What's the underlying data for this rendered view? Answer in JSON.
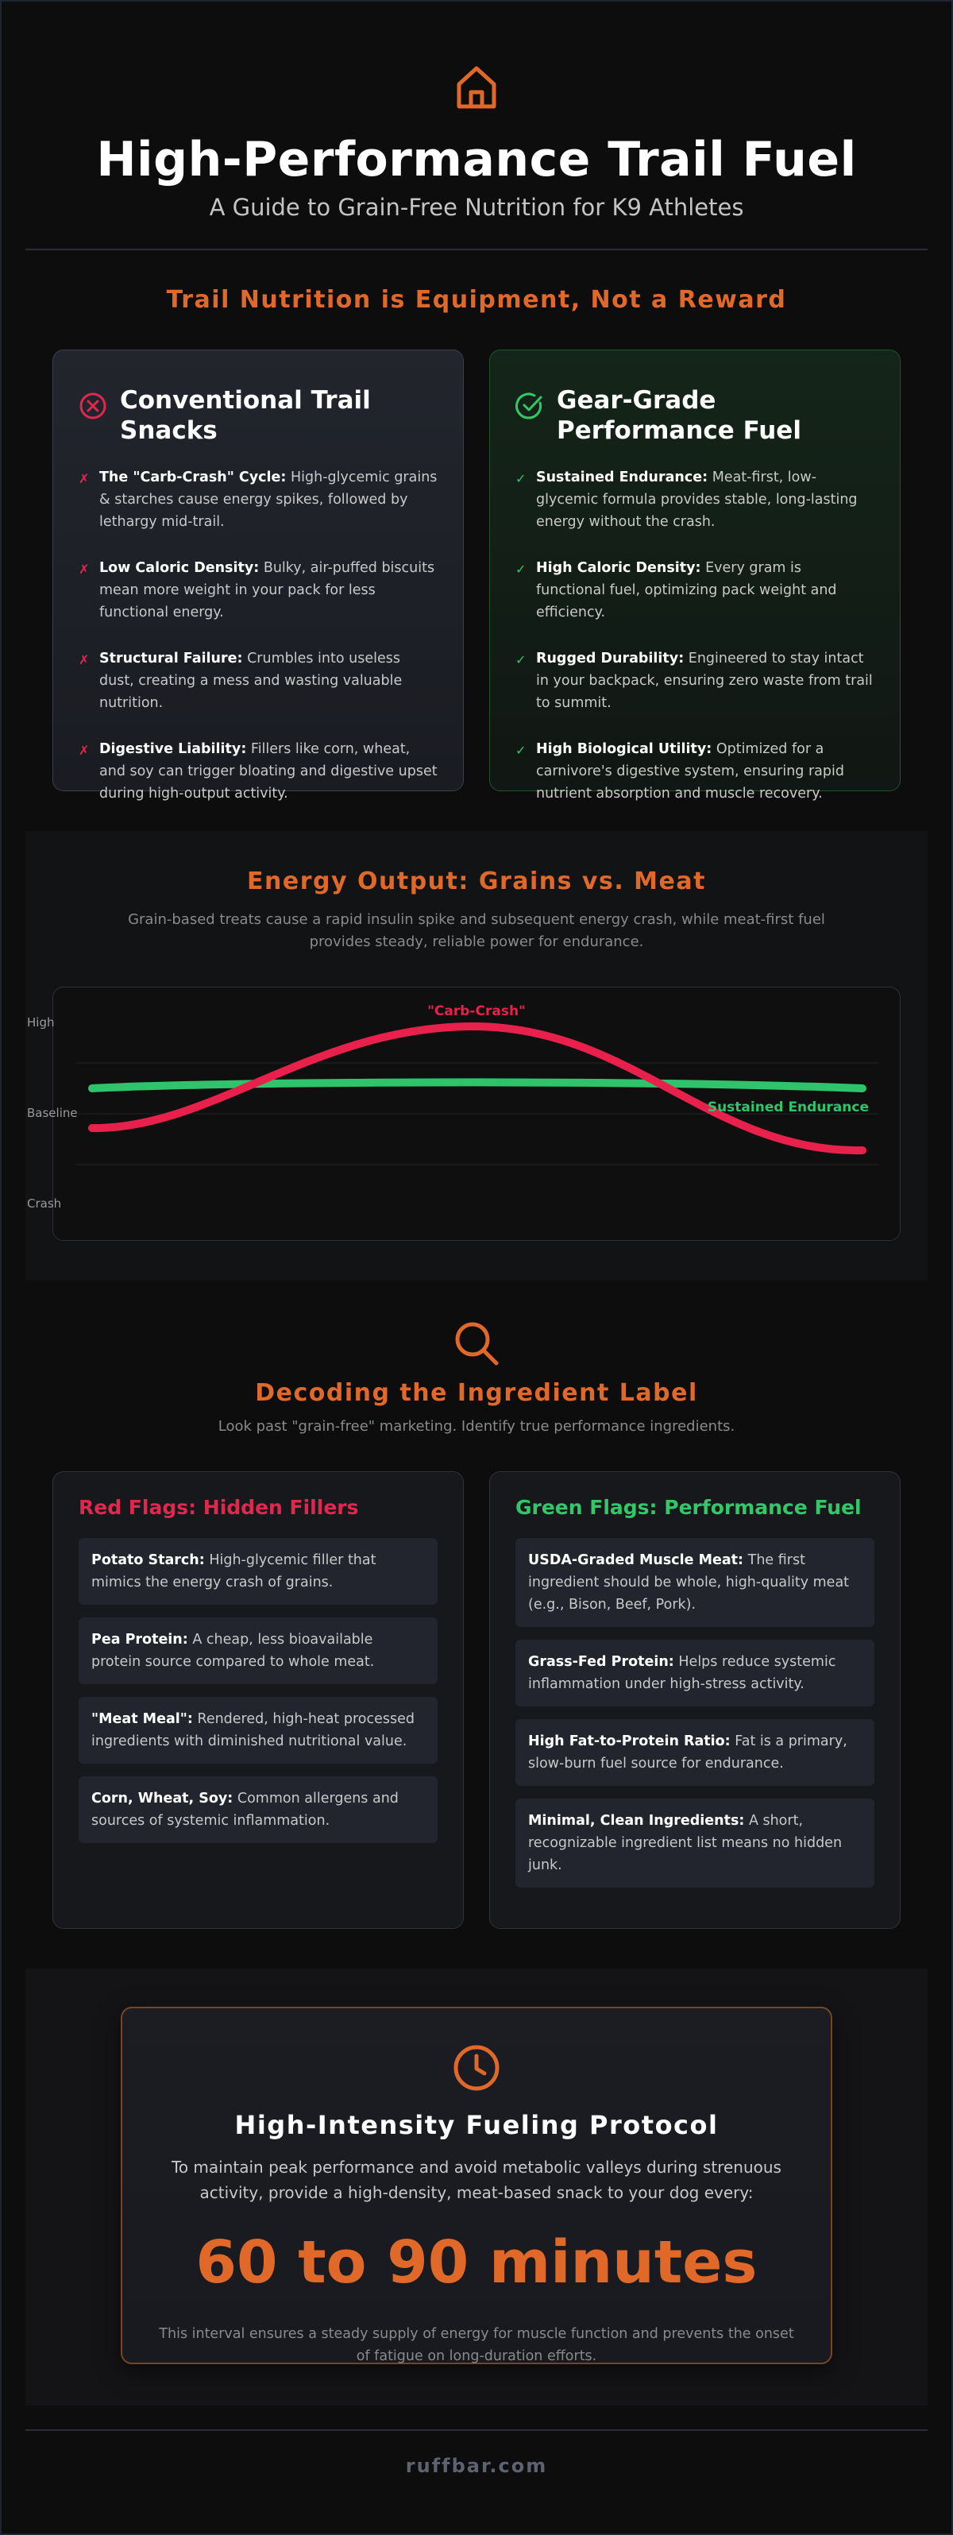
{
  "header": {
    "icon": "home-icon",
    "title": "High-Performance Trail Fuel",
    "subtitle": "A Guide to Grain-Free Nutrition for K9 Athletes"
  },
  "comparison": {
    "section_title": "Trail Nutrition is Equipment, Not a Reward",
    "conventional": {
      "icon": "x-circle-icon",
      "title": "Conventional Trail Snacks",
      "items": [
        {
          "mark": "✗",
          "label": "The \"Carb-Crash\" Cycle:",
          "text": "High-glycemic grains & starches cause energy spikes, followed by lethargy mid-trail."
        },
        {
          "mark": "✗",
          "label": "Low Caloric Density:",
          "text": "Bulky, air-puffed biscuits mean more weight in your pack for less functional energy."
        },
        {
          "mark": "✗",
          "label": "Structural Failure:",
          "text": "Crumbles into useless dust, creating a mess and wasting valuable nutrition."
        },
        {
          "mark": "✗",
          "label": "Digestive Liability:",
          "text": "Fillers like corn, wheat, and soy can trigger bloating and digestive upset during high-output activity."
        }
      ]
    },
    "performance": {
      "icon": "check-circle-icon",
      "title": "Gear-Grade Performance Fuel",
      "items": [
        {
          "mark": "✓",
          "label": "Sustained Endurance:",
          "text": "Meat-first, low-glycemic formula provides stable, long-lasting energy without the crash."
        },
        {
          "mark": "✓",
          "label": "High Caloric Density:",
          "text": "Every gram is functional fuel, optimizing pack weight and efficiency."
        },
        {
          "mark": "✓",
          "label": "Rugged Durability:",
          "text": "Engineered to stay intact in your backpack, ensuring zero waste from trail to summit."
        },
        {
          "mark": "✓",
          "label": "High Biological Utility:",
          "text": "Optimized for a carnivore's digestive system, ensuring rapid nutrient absorption and muscle recovery."
        }
      ]
    }
  },
  "energy": {
    "title": "Energy Output: Grains vs. Meat",
    "subtitle": "Grain-based treats cause a rapid insulin spike and subsequent energy crash, while meat-first fuel provides steady, reliable power for endurance.",
    "y_labels": [
      "High",
      "Baseline",
      "Crash"
    ],
    "carb_label": "\"Carb-Crash\"",
    "meat_label": "Sustained Endurance",
    "carb_color": "#e8204c",
    "meat_color": "#2fc46b"
  },
  "ingredients": {
    "icon": "search-icon",
    "title": "Decoding the Ingredient Label",
    "subtitle": "Look past \"grain-free\" marketing. Identify true performance ingredients.",
    "red": {
      "title": "Red Flags: Hidden Fillers",
      "items": [
        {
          "label": "Potato Starch:",
          "text": "High-glycemic filler that mimics the energy crash of grains."
        },
        {
          "label": "Pea Protein:",
          "text": "A cheap, less bioavailable protein source compared to whole meat."
        },
        {
          "label": "\"Meat Meal\":",
          "text": "Rendered, high-heat processed ingredients with diminished nutritional value."
        },
        {
          "label": "Corn, Wheat, Soy:",
          "text": "Common allergens and sources of systemic inflammation."
        }
      ]
    },
    "green": {
      "title": "Green Flags: Performance Fuel",
      "items": [
        {
          "label": "USDA-Graded Muscle Meat:",
          "text": "The first ingredient should be whole, high-quality meat (e.g., Bison, Beef, Pork)."
        },
        {
          "label": "Grass-Fed Protein:",
          "text": "Helps reduce systemic inflammation under high-stress activity."
        },
        {
          "label": "High Fat-to-Protein Ratio:",
          "text": "Fat is a primary, slow-burn fuel source for endurance."
        },
        {
          "label": "Minimal, Clean Ingredients:",
          "text": "A short, recognizable ingredient list means no hidden junk."
        }
      ]
    }
  },
  "protocol": {
    "icon": "clock-icon",
    "title": "High-Intensity Fueling Protocol",
    "text": "To maintain peak performance and avoid metabolic valleys during strenuous activity, provide a high-density, meat-based snack to your dog every:",
    "interval": "60 to 90 minutes",
    "note": "This interval ensures a steady supply of energy for muscle function and prevents the onset of fatigue on long-duration efforts."
  },
  "footer": {
    "site": "ruffbar.com"
  },
  "colors": {
    "accent": "#e0692a",
    "bad": "#e0284f",
    "good": "#34c76a",
    "background": "#0d0d0d"
  }
}
